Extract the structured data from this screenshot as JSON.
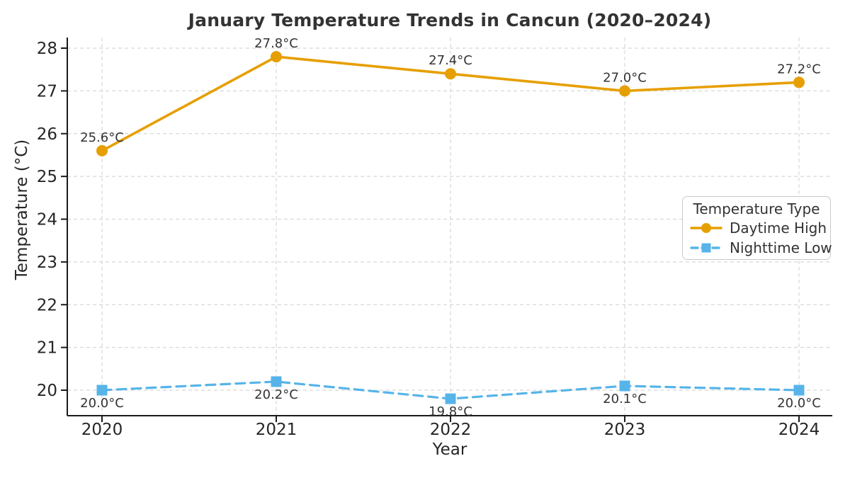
{
  "title": "January Temperature Trends in Cancun (2020–2024)",
  "legend": {
    "title": "Temperature Type",
    "items": [
      {
        "label": "Daytime High"
      },
      {
        "label": "Nighttime Low"
      }
    ]
  },
  "colors": {
    "daytime_high": "#E69F00",
    "nighttime_low": "#56B4E9",
    "text": "#333333",
    "tick_text": "#262626",
    "grid": "#d7d7d7",
    "spine": "#1a1a1a",
    "legend_border": "#c9c9c9"
  },
  "chart_data": {
    "type": "line",
    "title": "January Temperature Trends in Cancun (2020–2024)",
    "xlabel": "Year",
    "ylabel": "Temperature (°C)",
    "x": [
      2020,
      2021,
      2022,
      2023,
      2024
    ],
    "x_tick_labels": [
      "2020",
      "2021",
      "2022",
      "2023",
      "2024"
    ],
    "yticks": [
      20,
      21,
      22,
      23,
      24,
      25,
      26,
      27,
      28
    ],
    "ylim": [
      19.4,
      28.3
    ],
    "grid": true,
    "grid_style": "dashed",
    "legend_title": "Temperature Type",
    "legend_position": "center right",
    "unit": "°C",
    "series": [
      {
        "name": "Daytime High",
        "values": [
          25.6,
          27.8,
          27.4,
          27.0,
          27.2
        ],
        "labels": [
          "25.6°C",
          "27.8°C",
          "27.4°C",
          "27.0°C",
          "27.2°C"
        ],
        "color": "#E69F00",
        "marker": "circle",
        "linestyle": "solid",
        "label_side": "above"
      },
      {
        "name": "Nighttime Low",
        "values": [
          20.0,
          20.2,
          19.8,
          20.1,
          20.0
        ],
        "labels": [
          "20.0°C",
          "20.2°C",
          "19.8°C",
          "20.1°C",
          "20.0°C"
        ],
        "color": "#56B4E9",
        "marker": "square",
        "linestyle": "dashed",
        "label_side": "below"
      }
    ]
  }
}
